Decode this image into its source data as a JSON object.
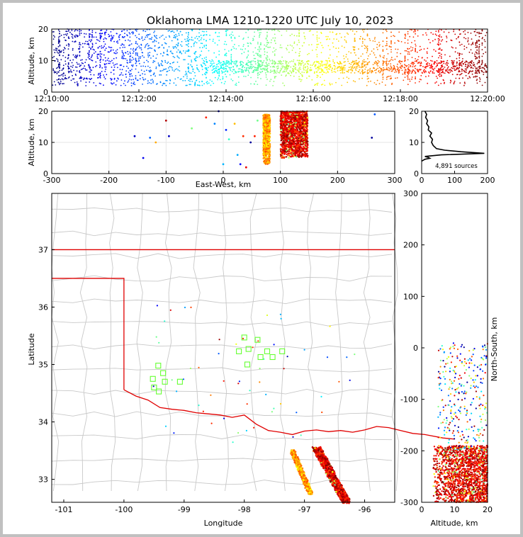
{
  "title": "Oklahoma LMA 1210-1220 UTC July 10, 2023",
  "colors": {
    "state_border": "#e00000",
    "county_line": "#c8c8c8",
    "frame": "#000000",
    "box": "#66ff33",
    "grid": "#e6e6e6"
  },
  "chart_data": [
    {
      "id": "time_height",
      "type": "scatter",
      "ylabel": "Altitude, km",
      "xlim": [
        "12:10:00",
        "12:20:00"
      ],
      "ylim": [
        0,
        20
      ],
      "xticks": [
        "12:10:00",
        "12:12:00",
        "12:14:00",
        "12:16:00",
        "12:18:00",
        "12:20:00"
      ],
      "yticks": [
        0,
        10,
        20
      ],
      "color_by": "time",
      "colormap": "jet",
      "point_altitude_range_km": [
        2,
        20
      ]
    },
    {
      "id": "east_west_altitude",
      "type": "scatter",
      "xlabel": "East-West, km",
      "ylabel": "Altitude, km",
      "xlim": [
        -300,
        300
      ],
      "ylim": [
        0,
        20
      ],
      "xticks": [
        -300,
        -200,
        -100,
        0,
        100,
        200,
        300
      ],
      "yticks": [
        0,
        10,
        20
      ],
      "grid": true,
      "clusters": [
        {
          "x_range": [
            70,
            82
          ],
          "y_range": [
            3,
            19
          ],
          "palette": "orange"
        },
        {
          "x_range": [
            100,
            148
          ],
          "y_range": [
            5,
            20
          ],
          "palette": "red"
        }
      ],
      "scattered_points": [
        [
          -155,
          12
        ],
        [
          -140,
          5
        ],
        [
          -128,
          11.5
        ],
        [
          -118,
          10
        ],
        [
          -100,
          17
        ],
        [
          -95,
          12
        ],
        [
          -55,
          14.5
        ],
        [
          -30,
          18
        ],
        [
          -15,
          16
        ],
        [
          -8,
          20
        ],
        [
          0,
          3
        ],
        [
          5,
          14
        ],
        [
          10,
          11
        ],
        [
          20,
          16
        ],
        [
          25,
          6
        ],
        [
          30,
          3
        ],
        [
          35,
          12
        ],
        [
          40,
          2
        ],
        [
          48,
          10
        ],
        [
          55,
          12
        ],
        [
          60,
          17
        ],
        [
          260,
          11.5
        ],
        [
          265,
          19
        ]
      ]
    },
    {
      "id": "altitude_histogram",
      "type": "line",
      "annotation": "4,891 sources",
      "xlim": [
        0,
        200
      ],
      "ylim": [
        0,
        20
      ],
      "xticks": [
        0,
        100,
        200
      ],
      "yticks": [
        0,
        10,
        20
      ],
      "profile": [
        [
          0,
          4
        ],
        [
          10,
          4.6
        ],
        [
          25,
          4.9
        ],
        [
          20,
          5.2
        ],
        [
          10,
          5.5
        ],
        [
          60,
          6
        ],
        [
          190,
          6.5
        ],
        [
          120,
          7
        ],
        [
          70,
          7.5
        ],
        [
          45,
          8
        ],
        [
          35,
          9
        ],
        [
          30,
          10
        ],
        [
          33,
          11
        ],
        [
          25,
          12
        ],
        [
          30,
          13
        ],
        [
          20,
          14
        ],
        [
          22,
          15
        ],
        [
          15,
          16
        ],
        [
          18,
          17
        ],
        [
          12,
          18
        ],
        [
          15,
          19
        ],
        [
          10,
          20
        ]
      ]
    },
    {
      "id": "plan_view",
      "type": "scatter",
      "xlabel": "Longitude",
      "ylabel": "Latitude",
      "xlim": [
        -101.2,
        -95.5
      ],
      "ylim": [
        32.6,
        37.98
      ],
      "xticks": [
        -101,
        -100,
        -99,
        -98,
        -97,
        -96
      ],
      "yticks": [
        33,
        34,
        35,
        36,
        37
      ],
      "band_1": {
        "from": [
          -97.2,
          33.5
        ],
        "to": [
          -96.9,
          32.75
        ],
        "palette": "orange"
      },
      "band_2": {
        "from": [
          -96.8,
          33.55
        ],
        "to": [
          -96.3,
          32.6
        ],
        "palette": "red"
      },
      "stations": [
        [
          -98.0,
          35.47
        ],
        [
          -97.78,
          35.43
        ],
        [
          -98.09,
          35.23
        ],
        [
          -97.93,
          35.27
        ],
        [
          -97.62,
          35.23
        ],
        [
          -97.73,
          35.13
        ],
        [
          -97.53,
          35.13
        ],
        [
          -97.37,
          35.23
        ],
        [
          -97.95,
          35.0
        ],
        [
          -99.43,
          34.98
        ],
        [
          -99.35,
          34.85
        ],
        [
          -99.52,
          34.75
        ],
        [
          -99.32,
          34.7
        ],
        [
          -99.07,
          34.7
        ],
        [
          -99.5,
          34.6
        ],
        [
          -99.42,
          34.53
        ]
      ]
    },
    {
      "id": "altitude_north_south",
      "type": "scatter",
      "xlabel": "Altitude, km",
      "ylabel": "North-South, km",
      "xlim": [
        0,
        20
      ],
      "ylim": [
        -300,
        300
      ],
      "xticks": [
        0,
        10,
        20
      ],
      "yticks": [
        -300,
        -200,
        -100,
        0,
        100,
        200,
        300
      ],
      "cluster": {
        "x_range": [
          3.5,
          20
        ],
        "y_range": [
          -300,
          -190
        ],
        "palette": "red"
      }
    }
  ]
}
